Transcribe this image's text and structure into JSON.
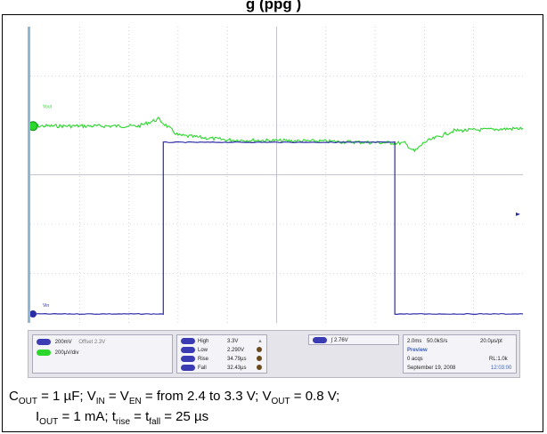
{
  "title": "g                                    (ppg   )",
  "colors": {
    "ch1": "#2dd62d",
    "ch2": "#2c2ca6",
    "grid": "#b5b5c5",
    "badge_blue": "#3b3bb4",
    "badge_green": "#2dd62d"
  },
  "chart_data": {
    "type": "line",
    "x_divisions": 10,
    "y_divisions": 6,
    "series": [
      {
        "name": "Vout",
        "color": "#2dd62d",
        "x": [
          0,
          2.2,
          2.6,
          3.0,
          4.0,
          6.0,
          7.6,
          7.8,
          8.0,
          8.6,
          10
        ],
        "y": [
          4.05,
          4.05,
          4.2,
          3.85,
          3.75,
          3.72,
          3.68,
          3.5,
          3.7,
          3.95,
          4.0
        ]
      },
      {
        "name": "Vin",
        "color": "#2c2ca6",
        "x": [
          0,
          2.7,
          2.7,
          7.4,
          7.4,
          10
        ],
        "y": [
          0.0,
          0.0,
          3.7,
          3.7,
          0.0,
          0.0
        ]
      }
    ],
    "ylim": [
      0,
      6
    ],
    "xlim": [
      0,
      10
    ],
    "grid": true
  },
  "scope": {
    "ch1_label": "Vout",
    "ch2_label": "Vin"
  },
  "status": {
    "ch1_scale": "200mV",
    "ch1_offset": "Offset 2.3V",
    "ch2_scale": "200µV/div",
    "m_high_label": "High",
    "m_high_val": "3.3V",
    "m_low_label": "Low",
    "m_low_val": "2.290V",
    "m_rise_label": "Rise",
    "m_rise_val": "34.79µs",
    "m_fall_label": "Fall",
    "m_fall_val": "32.43µs",
    "trigger_val": "2.76V",
    "timebase": "2.0ms",
    "sample_rate": "50.0kS/s",
    "per_pt": "20.0µs/pt",
    "mode": "Preview",
    "acqs": "0 acqs",
    "record": "RL:1.0k",
    "date": "September 19, 2008",
    "time": "12:03:00"
  },
  "caption": {
    "line1": "C_OUT = 1 µF; V_IN = V_EN = from 2.4 to 3.3 V; V_OUT = 0.8 V;",
    "line2": "I_OUT = 1 mA; t_rise = t_fall = 25 µs"
  }
}
